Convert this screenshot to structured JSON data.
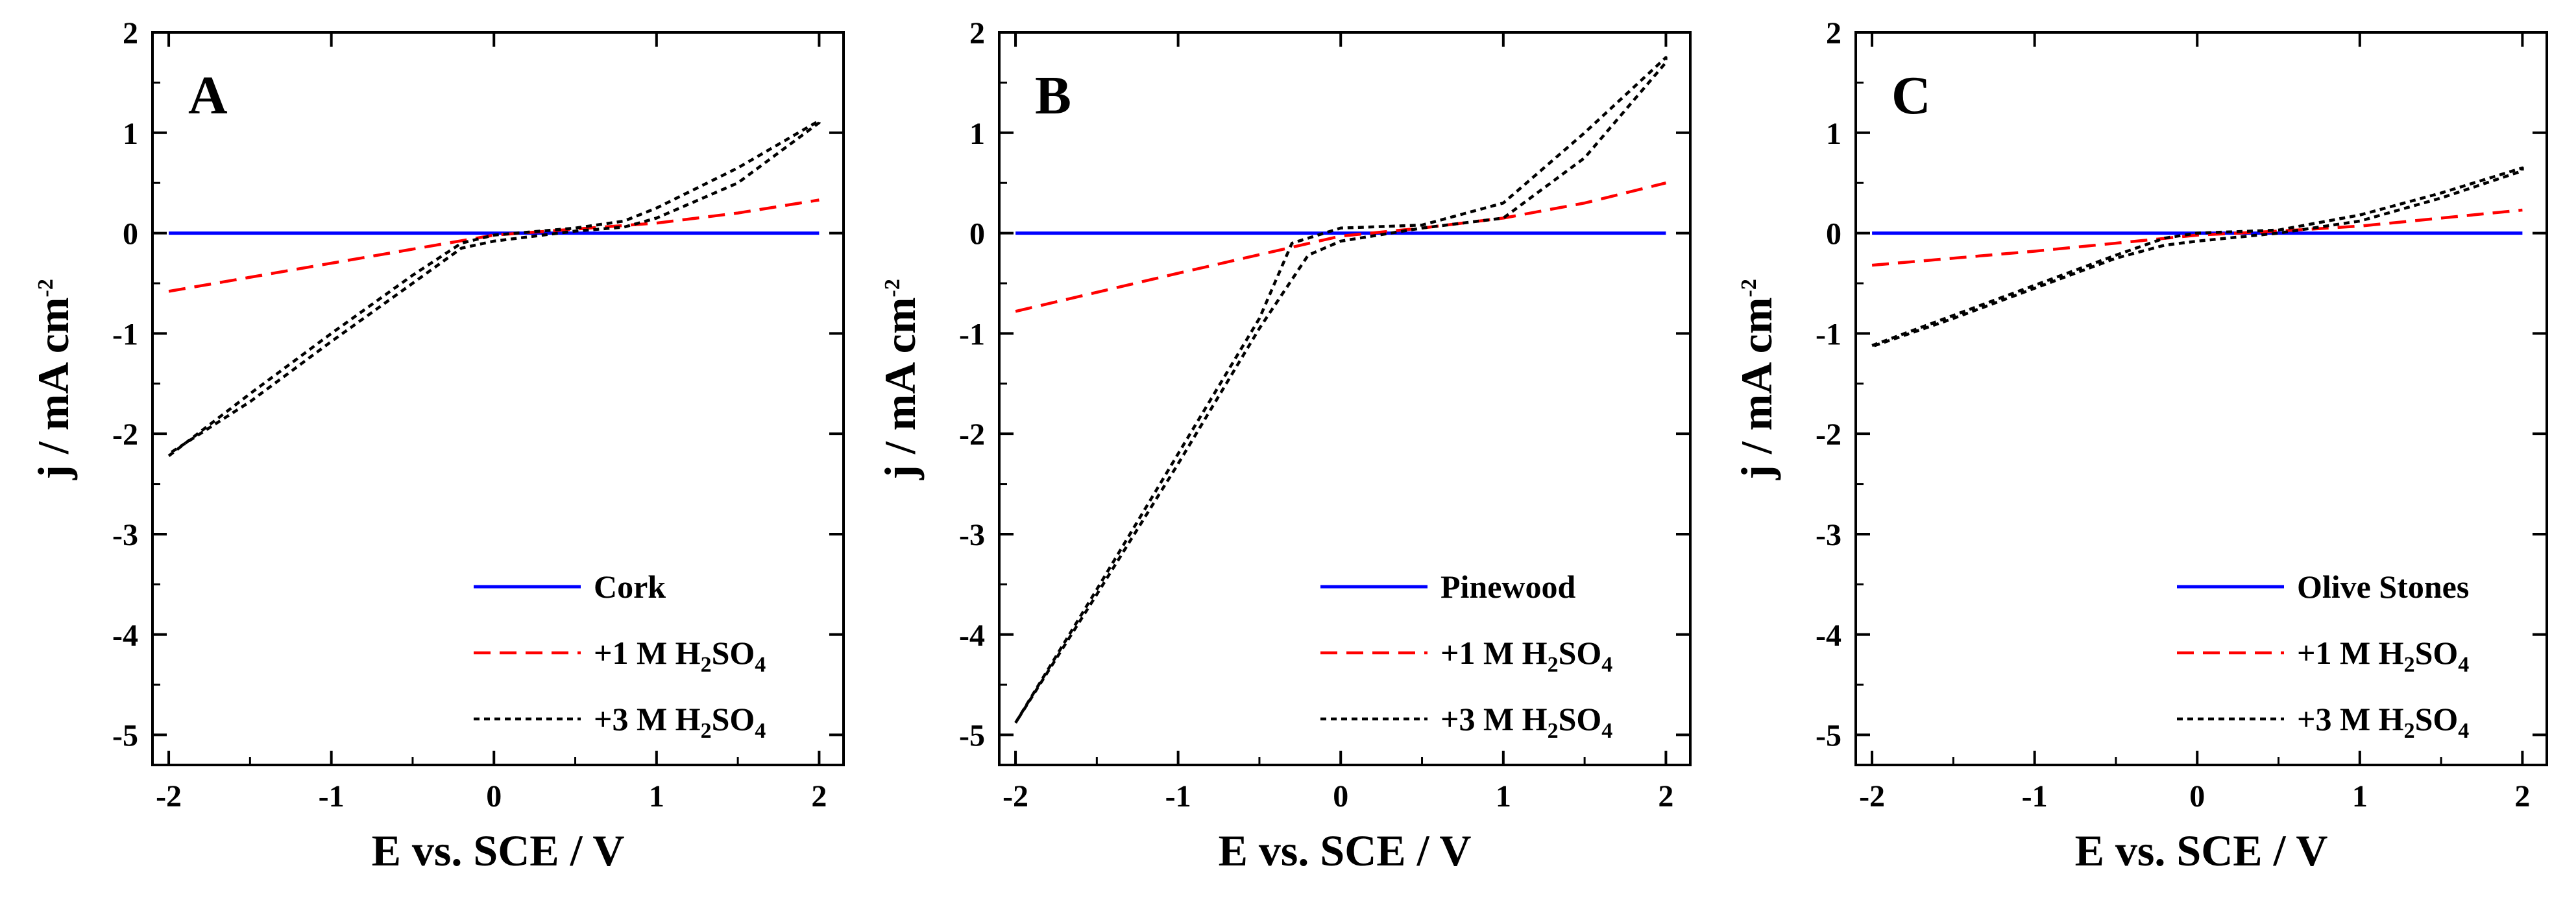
{
  "chart_data": [
    {
      "type": "line",
      "panel_label": "A",
      "xlabel": "E vs. SCE / V",
      "ylabel": {
        "main": "j / mA cm",
        "sup": "-2"
      },
      "xlim": [
        -2.1,
        2.15
      ],
      "ylim": [
        -5.3,
        2
      ],
      "xticks": [
        -2,
        -1,
        0,
        1,
        2
      ],
      "yticks": [
        -5,
        -4,
        -3,
        -2,
        -1,
        0,
        1,
        2
      ],
      "legend_position": "bottom-right",
      "series": [
        {
          "name": "Cork",
          "color": "#0000ff",
          "style": "solid",
          "x": [
            -2,
            2
          ],
          "y": [
            0,
            0
          ]
        },
        {
          "name": "+1 M H2SO4",
          "legend": {
            "pre": "+1 M H",
            "sub1": "2",
            "mid": "SO",
            "sub2": "4"
          },
          "color": "#ff0000",
          "style": "dashed",
          "x": [
            -2,
            -1,
            0,
            0.5,
            1,
            1.5,
            2
          ],
          "y": [
            -0.58,
            -0.3,
            -0.02,
            0.04,
            0.1,
            0.2,
            0.33
          ]
        },
        {
          "name": "+3 M H2SO4",
          "legend": {
            "pre": "+3 M H",
            "sub1": "2",
            "mid": "SO",
            "sub2": "4"
          },
          "color": "#000000",
          "style": "dotted",
          "x": [
            -2,
            -1.5,
            -1,
            -0.5,
            -0.2,
            0,
            0.5,
            0.8,
            1,
            1.5,
            2,
            2,
            1.5,
            1,
            0.8,
            0.5,
            0,
            -0.2,
            -0.5,
            -1,
            -1.5,
            -2
          ],
          "y": [
            -2.22,
            -1.6,
            -1.0,
            -0.42,
            -0.1,
            -0.02,
            0.05,
            0.12,
            0.25,
            0.65,
            1.12,
            1.1,
            0.5,
            0.15,
            0.06,
            0.02,
            -0.08,
            -0.15,
            -0.5,
            -1.08,
            -1.68,
            -2.2
          ]
        }
      ]
    },
    {
      "type": "line",
      "panel_label": "B",
      "xlabel": "E vs. SCE / V",
      "ylabel": {
        "main": "j / mA cm",
        "sup": "-2"
      },
      "xlim": [
        -2.1,
        2.15
      ],
      "ylim": [
        -5.3,
        2
      ],
      "xticks": [
        -2,
        -1,
        0,
        1,
        2
      ],
      "yticks": [
        -5,
        -4,
        -3,
        -2,
        -1,
        0,
        1,
        2
      ],
      "legend_position": "bottom-right",
      "series": [
        {
          "name": "Pinewood",
          "color": "#0000ff",
          "style": "solid",
          "x": [
            -2,
            2
          ],
          "y": [
            0,
            0
          ]
        },
        {
          "name": "+1 M H2SO4",
          "legend": {
            "pre": "+1 M H",
            "sub1": "2",
            "mid": "SO",
            "sub2": "4"
          },
          "color": "#ff0000",
          "style": "dashed",
          "x": [
            -2,
            -1,
            0,
            0.5,
            1,
            1.5,
            2
          ],
          "y": [
            -0.78,
            -0.4,
            -0.03,
            0.05,
            0.15,
            0.3,
            0.5
          ]
        },
        {
          "name": "+3 M H2SO4",
          "legend": {
            "pre": "+3 M H",
            "sub1": "2",
            "mid": "SO",
            "sub2": "4"
          },
          "color": "#000000",
          "style": "dotted",
          "x": [
            -2,
            -1.5,
            -1,
            -0.5,
            -0.3,
            0,
            0.5,
            1,
            1.5,
            2,
            2,
            1.5,
            1,
            0.5,
            0,
            -0.2,
            -0.5,
            -1,
            -1.5,
            -2
          ],
          "y": [
            -4.88,
            -3.55,
            -2.2,
            -0.85,
            -0.1,
            0.05,
            0.08,
            0.3,
            1.0,
            1.75,
            1.7,
            0.75,
            0.15,
            0.05,
            -0.08,
            -0.22,
            -0.95,
            -2.3,
            -3.6,
            -4.88
          ]
        }
      ]
    },
    {
      "type": "line",
      "panel_label": "C",
      "xlabel": "E vs. SCE / V",
      "ylabel": {
        "main": "j / mA cm",
        "sup": "-2"
      },
      "xlim": [
        -2.1,
        2.15
      ],
      "ylim": [
        -5.3,
        2
      ],
      "xticks": [
        -2,
        -1,
        0,
        1,
        2
      ],
      "yticks": [
        -5,
        -4,
        -3,
        -2,
        -1,
        0,
        1,
        2
      ],
      "legend_position": "bottom-right",
      "series": [
        {
          "name": "Olive Stones",
          "color": "#0000ff",
          "style": "solid",
          "x": [
            -2,
            2
          ],
          "y": [
            0,
            0
          ]
        },
        {
          "name": "+1 M H2SO4",
          "legend": {
            "pre": "+1 M H",
            "sub1": "2",
            "mid": "SO",
            "sub2": "4"
          },
          "color": "#ff0000",
          "style": "dashed",
          "x": [
            -2,
            -1,
            0,
            0.5,
            1,
            1.5,
            2
          ],
          "y": [
            -0.32,
            -0.18,
            -0.02,
            0.02,
            0.07,
            0.15,
            0.23
          ]
        },
        {
          "name": "+3 M H2SO4",
          "legend": {
            "pre": "+3 M H",
            "sub1": "2",
            "mid": "SO",
            "sub2": "4"
          },
          "color": "#000000",
          "style": "dotted",
          "x": [
            -2,
            -1.5,
            -1,
            -0.5,
            -0.2,
            0,
            0.5,
            1,
            1.5,
            2,
            2,
            1.5,
            1,
            0.5,
            0,
            -0.2,
            -0.5,
            -1,
            -1.5,
            -2
          ],
          "y": [
            -1.12,
            -0.82,
            -0.52,
            -0.22,
            -0.05,
            0.0,
            0.03,
            0.18,
            0.4,
            0.65,
            0.62,
            0.35,
            0.12,
            0.0,
            -0.08,
            -0.12,
            -0.25,
            -0.55,
            -0.85,
            -1.13
          ]
        }
      ]
    }
  ]
}
